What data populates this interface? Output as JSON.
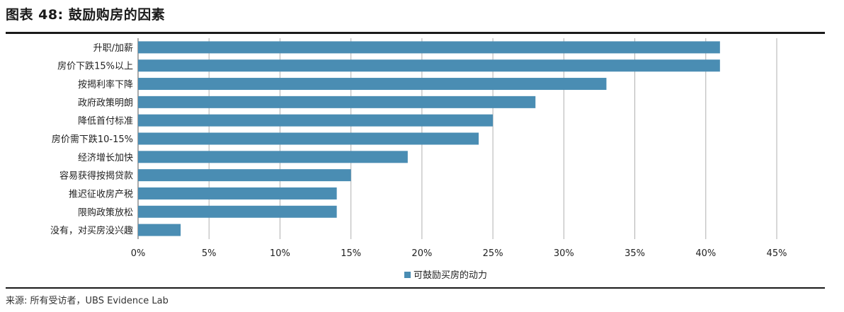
{
  "header": {
    "title": "图表 48: 鼓励购房的因素"
  },
  "footer": {
    "source": "来源: 所有受访者，UBS Evidence Lab"
  },
  "colors": {
    "bar": "#4a8db3",
    "grid": "#b0b0b0",
    "axis": "#555555"
  },
  "chart_data": {
    "type": "bar",
    "orientation": "horizontal",
    "categories": [
      "升职/加薪",
      "房价下跌15%以上",
      "按揭利率下降",
      "政府政策明朗",
      "降低首付标准",
      "房价需下跌10-15%",
      "经济增长加快",
      "容易获得按揭贷款",
      "推迟征收房产税",
      "限购政策放松",
      "没有，对买房没兴趣"
    ],
    "series": [
      {
        "name": "可鼓励买房的动力",
        "values": [
          41,
          41,
          33,
          28,
          25,
          24,
          19,
          15,
          14,
          14,
          3
        ]
      }
    ],
    "xlim": [
      0,
      45
    ],
    "xticks": [
      0,
      5,
      10,
      15,
      20,
      25,
      30,
      35,
      40,
      45
    ],
    "tick_labels": [
      "0%",
      "5%",
      "10%",
      "15%",
      "20%",
      "25%",
      "30%",
      "35%",
      "40%",
      "45%"
    ],
    "grid": true,
    "legend_position": "bottom-center"
  }
}
